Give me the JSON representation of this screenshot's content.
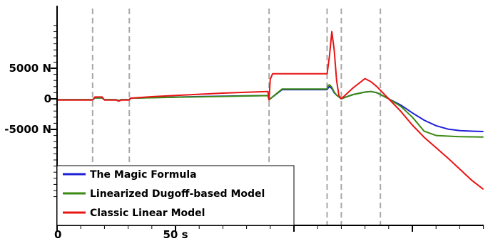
{
  "chart_data": {
    "type": "line",
    "title": "",
    "xlabel": "",
    "ylabel": "",
    "xlim": [
      0,
      180
    ],
    "ylim": [
      -16000,
      12000
    ],
    "x_tick_values": [
      0,
      50,
      100,
      150
    ],
    "x_tick_labels": [
      "0",
      "50 s",
      "",
      ""
    ],
    "y_tick_values": [
      5000,
      0,
      -5000
    ],
    "y_tick_labels": [
      "5000 N",
      "0",
      "-5000 N"
    ],
    "grid": false,
    "legend_position": "bottom-left",
    "vertical_markers": [
      15,
      30.5,
      89.5,
      114,
      120,
      136.5
    ],
    "series": [
      {
        "name": "The Magic Formula",
        "color": "#1f1fd6",
        "points": [
          [
            0,
            -150
          ],
          [
            15,
            -150
          ],
          [
            16,
            150
          ],
          [
            19,
            150
          ],
          [
            20,
            -150
          ],
          [
            25,
            -150
          ],
          [
            26,
            -300
          ],
          [
            27,
            -150
          ],
          [
            30.5,
            -150
          ],
          [
            31,
            100
          ],
          [
            40,
            200
          ],
          [
            50,
            280
          ],
          [
            60,
            360
          ],
          [
            70,
            430
          ],
          [
            80,
            500
          ],
          [
            89,
            540
          ],
          [
            89.5,
            -150
          ],
          [
            95,
            1500
          ],
          [
            114,
            1500
          ],
          [
            114.5,
            1800
          ],
          [
            115,
            2000
          ],
          [
            116,
            1700
          ],
          [
            117,
            1000
          ],
          [
            118,
            600
          ],
          [
            120,
            0
          ],
          [
            122,
            300
          ],
          [
            125,
            700
          ],
          [
            130,
            1100
          ],
          [
            132.5,
            1200
          ],
          [
            135,
            1000
          ],
          [
            137.5,
            500
          ],
          [
            140,
            0
          ],
          [
            145,
            -1000
          ],
          [
            150,
            -2300
          ],
          [
            155,
            -3500
          ],
          [
            160,
            -4400
          ],
          [
            165,
            -4950
          ],
          [
            170,
            -5200
          ],
          [
            176,
            -5300
          ],
          [
            180,
            -5350
          ]
        ]
      },
      {
        "name": "Linearized Dugoff-based Model",
        "color": "#3a8a11",
        "points": [
          [
            0,
            -150
          ],
          [
            15,
            -150
          ],
          [
            16,
            150
          ],
          [
            19,
            150
          ],
          [
            20,
            -150
          ],
          [
            25,
            -150
          ],
          [
            26,
            -300
          ],
          [
            27,
            -150
          ],
          [
            30.5,
            -150
          ],
          [
            31,
            100
          ],
          [
            40,
            180
          ],
          [
            50,
            250
          ],
          [
            60,
            330
          ],
          [
            70,
            400
          ],
          [
            80,
            470
          ],
          [
            89,
            520
          ],
          [
            89.5,
            -150
          ],
          [
            95,
            1600
          ],
          [
            114,
            1600
          ],
          [
            114.5,
            2200
          ],
          [
            115,
            2300
          ],
          [
            116,
            1900
          ],
          [
            117,
            1100
          ],
          [
            118,
            600
          ],
          [
            120,
            0
          ],
          [
            122,
            300
          ],
          [
            125,
            700
          ],
          [
            130,
            1100
          ],
          [
            132.5,
            1200
          ],
          [
            135,
            1000
          ],
          [
            137.5,
            500
          ],
          [
            140,
            0
          ],
          [
            145,
            -1200
          ],
          [
            150,
            -3000
          ],
          [
            155,
            -5300
          ],
          [
            160,
            -6000
          ],
          [
            170,
            -6200
          ],
          [
            180,
            -6250
          ]
        ]
      },
      {
        "name": "Classic Linear Model",
        "color": "#e81414",
        "points": [
          [
            0,
            -200
          ],
          [
            15,
            -200
          ],
          [
            16,
            300
          ],
          [
            19,
            300
          ],
          [
            20,
            -200
          ],
          [
            25,
            -200
          ],
          [
            26,
            -400
          ],
          [
            27,
            -200
          ],
          [
            30.5,
            -200
          ],
          [
            31,
            100
          ],
          [
            40,
            350
          ],
          [
            50,
            550
          ],
          [
            60,
            750
          ],
          [
            70,
            930
          ],
          [
            80,
            1080
          ],
          [
            89,
            1200
          ],
          [
            89.5,
            -200
          ],
          [
            90,
            3200
          ],
          [
            91,
            4100
          ],
          [
            114,
            4100
          ],
          [
            115,
            7000
          ],
          [
            116,
            11000
          ],
          [
            117,
            8000
          ],
          [
            118,
            3000
          ],
          [
            119,
            500
          ],
          [
            120,
            0
          ],
          [
            125,
            1800
          ],
          [
            130,
            3300
          ],
          [
            132.5,
            2800
          ],
          [
            135,
            2000
          ],
          [
            137.5,
            1000
          ],
          [
            140,
            0
          ],
          [
            145,
            -2000
          ],
          [
            150,
            -4300
          ],
          [
            155,
            -6300
          ],
          [
            160,
            -8000
          ],
          [
            165,
            -9700
          ],
          [
            170,
            -11500
          ],
          [
            175,
            -13300
          ],
          [
            180,
            -14800
          ]
        ]
      }
    ]
  }
}
